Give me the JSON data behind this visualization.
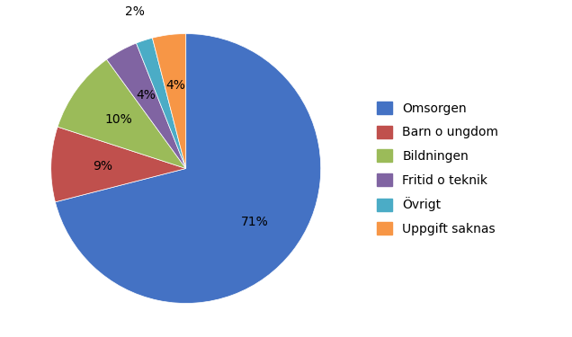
{
  "labels": [
    "Omsorgen",
    "Barn o ungdom",
    "Bildningen",
    "Fritid o teknik",
    "Övrigt",
    "Uppgift saknas"
  ],
  "values": [
    71,
    9,
    10,
    4,
    2,
    4
  ],
  "colors": [
    "#4472C4",
    "#C0504D",
    "#9BBB59",
    "#8064A2",
    "#4BACC6",
    "#F79646"
  ],
  "startangle": 90,
  "figsize": [
    6.36,
    3.75
  ],
  "dpi": 100,
  "label_positions": [
    {
      "r": 0.65,
      "color": "black"
    },
    {
      "r": 0.62,
      "color": "black"
    },
    {
      "r": 0.62,
      "color": "black"
    },
    {
      "r": 0.62,
      "color": "black"
    },
    {
      "r": 1.22,
      "color": "black"
    },
    {
      "r": 0.62,
      "color": "black"
    }
  ]
}
